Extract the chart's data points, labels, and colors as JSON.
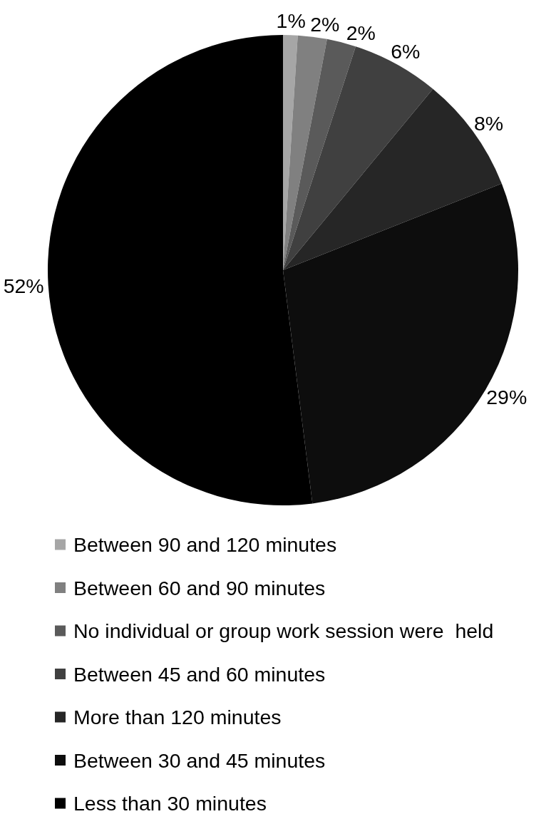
{
  "chart_data": {
    "type": "pie",
    "categories": [
      "Between 90 and 120 minutes",
      "Between 60 and 90 minutes",
      "No individual or group work session were  held",
      "Between 45 and 60 minutes",
      "More than 120 minutes",
      "Between 30 and 45 minutes",
      "Less than 30 minutes"
    ],
    "values": [
      1,
      2,
      2,
      6,
      8,
      29,
      52
    ],
    "colors": [
      "#a6a6a6",
      "#808080",
      "#5a5a5a",
      "#404040",
      "#262626",
      "#0d0d0d",
      "#000000"
    ],
    "value_labels": [
      "1%",
      "2%",
      "2%",
      "6%",
      "8%",
      "29%",
      "52%"
    ],
    "legend": "bottom"
  }
}
